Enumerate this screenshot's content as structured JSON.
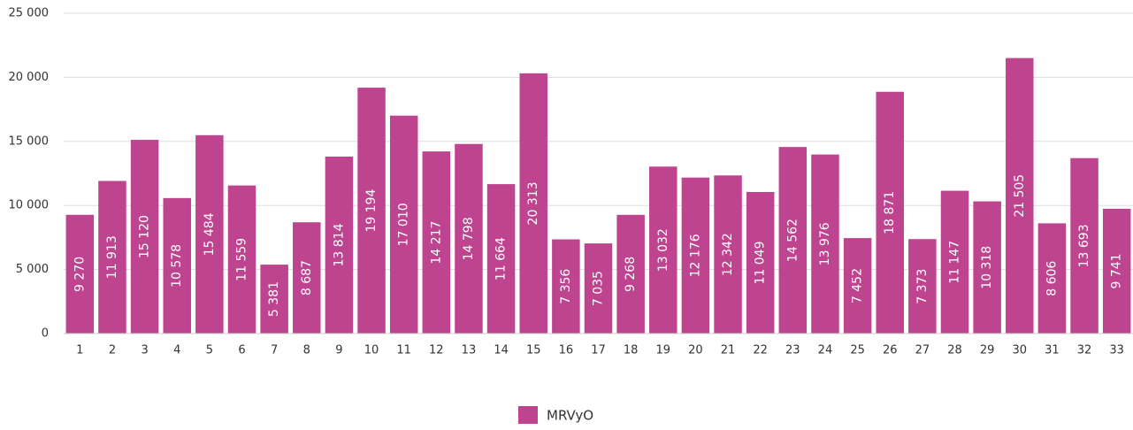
{
  "chart_data": {
    "type": "bar",
    "categories": [
      "1",
      "2",
      "3",
      "4",
      "5",
      "6",
      "7",
      "8",
      "9",
      "10",
      "11",
      "12",
      "13",
      "14",
      "15",
      "16",
      "17",
      "18",
      "19",
      "20",
      "21",
      "22",
      "23",
      "24",
      "25",
      "26",
      "27",
      "28",
      "29",
      "30",
      "31",
      "32",
      "33"
    ],
    "series": [
      {
        "name": "MRVyO",
        "color": "#bf4490",
        "values": [
          9270,
          11913,
          15120,
          10578,
          15484,
          11559,
          5381,
          8687,
          13814,
          19194,
          17010,
          14217,
          14798,
          11664,
          20313,
          7356,
          7035,
          9268,
          13032,
          12176,
          12342,
          11049,
          14562,
          13976,
          7452,
          18871,
          7373,
          11147,
          10318,
          21505,
          8606,
          13693,
          9741
        ],
        "value_labels": [
          "9 270",
          "11 913",
          "15 120",
          "10 578",
          "15 484",
          "11 559",
          "5 381",
          "8 687",
          "13 814",
          "19 194",
          "17 010",
          "14 217",
          "14 798",
          "11 664",
          "20 313",
          "7 356",
          "7 035",
          "9 268",
          "13 032",
          "12 176",
          "12 342",
          "11 049",
          "14 562",
          "13 976",
          "7 452",
          "18 871",
          "7 373",
          "11 147",
          "10 318",
          "21 505",
          "8 606",
          "13 693",
          "9 741"
        ]
      }
    ],
    "ylim": [
      0,
      25000
    ],
    "yticks": [
      0,
      {
        "value": 5000,
        "label": "5 000"
      },
      {
        "value": 10000,
        "label": "10 000"
      },
      {
        "value": 15000,
        "label": "15 000"
      },
      {
        "value": 20000,
        "label": "20 000"
      },
      {
        "value": 25000,
        "label": "25 000"
      }
    ],
    "grid": true,
    "legend": "bottom"
  }
}
